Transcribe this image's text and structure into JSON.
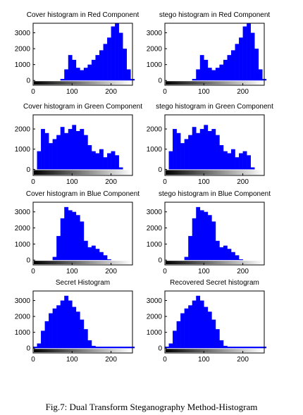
{
  "caption": "Fig.7: Dual Transform Steganography Method-Histogram",
  "colors": {
    "bars": "#0000ff",
    "axis": "#000000"
  },
  "chart_data": [
    {
      "type": "bar",
      "title": "Cover histogram in Red Component",
      "xlim": [
        0,
        255
      ],
      "ylim": [
        -300,
        3600
      ],
      "xticks": [
        0,
        100,
        200
      ],
      "yticks": [
        0,
        1000,
        2000,
        3000
      ],
      "colorbar": "grayscale gradient 0-255 below axis",
      "bins": [
        0,
        10,
        20,
        30,
        40,
        50,
        60,
        70,
        80,
        90,
        100,
        110,
        120,
        130,
        140,
        150,
        160,
        170,
        180,
        190,
        200,
        210,
        220,
        230,
        240,
        250
      ],
      "counts": [
        0,
        0,
        0,
        0,
        0,
        0,
        0,
        100,
        700,
        1600,
        1300,
        800,
        650,
        800,
        1000,
        1300,
        1600,
        1900,
        2300,
        2700,
        3400,
        3600,
        3000,
        2000,
        700,
        100
      ]
    },
    {
      "type": "bar",
      "title": "stego histogram in Red Component",
      "xlim": [
        0,
        255
      ],
      "ylim": [
        -300,
        3600
      ],
      "xticks": [
        0,
        100,
        200
      ],
      "yticks": [
        0,
        1000,
        2000,
        3000
      ],
      "colorbar": "grayscale gradient 0-255 below axis",
      "bins": [
        0,
        10,
        20,
        30,
        40,
        50,
        60,
        70,
        80,
        90,
        100,
        110,
        120,
        130,
        140,
        150,
        160,
        170,
        180,
        190,
        200,
        210,
        220,
        230,
        240,
        250
      ],
      "counts": [
        0,
        0,
        0,
        0,
        0,
        0,
        0,
        100,
        700,
        1600,
        1300,
        800,
        650,
        800,
        1000,
        1300,
        1600,
        1900,
        2300,
        2700,
        3400,
        3600,
        3000,
        2000,
        700,
        100
      ]
    },
    {
      "type": "bar",
      "title": "Cover histogram in Green Component",
      "xlim": [
        0,
        255
      ],
      "ylim": [
        -300,
        2700
      ],
      "xticks": [
        0,
        100,
        200
      ],
      "yticks": [
        0,
        1000,
        2000
      ],
      "colorbar": "grayscale gradient 0-255 below axis",
      "bins": [
        0,
        10,
        20,
        30,
        40,
        50,
        60,
        70,
        80,
        90,
        100,
        110,
        120,
        130,
        140,
        150,
        160,
        170,
        180,
        190,
        200,
        210,
        220,
        230,
        240,
        250
      ],
      "counts": [
        0,
        900,
        2000,
        1800,
        1300,
        1500,
        1700,
        2100,
        1800,
        2000,
        2200,
        1900,
        2000,
        1700,
        1200,
        900,
        800,
        1000,
        600,
        800,
        900,
        700,
        100,
        0,
        0,
        0
      ]
    },
    {
      "type": "bar",
      "title": "stego histogram in Green Component",
      "xlim": [
        0,
        255
      ],
      "ylim": [
        -300,
        2700
      ],
      "xticks": [
        0,
        100,
        200
      ],
      "yticks": [
        0,
        1000,
        2000
      ],
      "colorbar": "grayscale gradient 0-255 below axis",
      "bins": [
        0,
        10,
        20,
        30,
        40,
        50,
        60,
        70,
        80,
        90,
        100,
        110,
        120,
        130,
        140,
        150,
        160,
        170,
        180,
        190,
        200,
        210,
        220,
        230,
        240,
        250
      ],
      "counts": [
        0,
        900,
        2000,
        1800,
        1300,
        1500,
        1700,
        2100,
        1800,
        2000,
        2200,
        1900,
        2000,
        1700,
        1200,
        900,
        800,
        1000,
        600,
        800,
        900,
        700,
        100,
        0,
        0,
        0
      ]
    },
    {
      "type": "bar",
      "title": "Cover histogram in Blue Component",
      "xlim": [
        0,
        255
      ],
      "ylim": [
        -300,
        3600
      ],
      "xticks": [
        0,
        100,
        200
      ],
      "yticks": [
        0,
        1000,
        2000,
        3000
      ],
      "colorbar": "grayscale gradient 0-255 below axis",
      "bins": [
        0,
        10,
        20,
        30,
        40,
        50,
        60,
        70,
        80,
        90,
        100,
        110,
        120,
        130,
        140,
        150,
        160,
        170,
        180,
        190,
        200,
        210,
        220,
        230,
        240,
        250
      ],
      "counts": [
        0,
        0,
        0,
        0,
        0,
        200,
        1500,
        2600,
        3300,
        3100,
        3000,
        2800,
        2400,
        1200,
        800,
        900,
        700,
        500,
        300,
        50,
        0,
        0,
        0,
        0,
        0,
        0
      ]
    },
    {
      "type": "bar",
      "title": "stego histogram in Blue Component",
      "xlim": [
        0,
        255
      ],
      "ylim": [
        -300,
        3600
      ],
      "xticks": [
        0,
        100,
        200
      ],
      "yticks": [
        0,
        1000,
        2000,
        3000
      ],
      "colorbar": "grayscale gradient 0-255 below axis",
      "bins": [
        0,
        10,
        20,
        30,
        40,
        50,
        60,
        70,
        80,
        90,
        100,
        110,
        120,
        130,
        140,
        150,
        160,
        170,
        180,
        190,
        200,
        210,
        220,
        230,
        240,
        250
      ],
      "counts": [
        0,
        0,
        0,
        0,
        0,
        200,
        1500,
        2600,
        3300,
        3100,
        3000,
        2800,
        2400,
        1200,
        800,
        900,
        700,
        500,
        300,
        50,
        0,
        0,
        0,
        0,
        0,
        0
      ]
    },
    {
      "type": "bar",
      "title": "Secret Histogram",
      "xlim": [
        0,
        255
      ],
      "ylim": [
        -300,
        3600
      ],
      "xticks": [
        0,
        100,
        200
      ],
      "yticks": [
        0,
        1000,
        2000,
        3000
      ],
      "colorbar": "grayscale gradient 0-255 below axis",
      "bins": [
        0,
        10,
        20,
        30,
        40,
        50,
        60,
        70,
        80,
        90,
        100,
        110,
        120,
        130,
        140,
        150,
        160,
        170,
        180,
        190,
        200,
        210,
        220,
        230,
        240,
        250
      ],
      "counts": [
        100,
        300,
        1100,
        1700,
        2200,
        2500,
        2700,
        3000,
        3300,
        3000,
        2600,
        2300,
        1800,
        1200,
        500,
        150,
        100,
        100,
        100,
        100,
        100,
        100,
        100,
        100,
        100,
        100
      ]
    },
    {
      "type": "bar",
      "title": "Recovered Secret histogram",
      "xlim": [
        0,
        255
      ],
      "ylim": [
        -300,
        3600
      ],
      "xticks": [
        0,
        100,
        200
      ],
      "yticks": [
        0,
        1000,
        2000,
        3000
      ],
      "colorbar": "grayscale gradient 0-255 below axis",
      "bins": [
        0,
        10,
        20,
        30,
        40,
        50,
        60,
        70,
        80,
        90,
        100,
        110,
        120,
        130,
        140,
        150,
        160,
        170,
        180,
        190,
        200,
        210,
        220,
        230,
        240,
        250
      ],
      "counts": [
        100,
        300,
        1100,
        1700,
        2200,
        2500,
        2700,
        3000,
        3300,
        3000,
        2600,
        2300,
        1800,
        1200,
        500,
        150,
        100,
        100,
        100,
        100,
        100,
        100,
        100,
        100,
        100,
        100
      ]
    }
  ]
}
